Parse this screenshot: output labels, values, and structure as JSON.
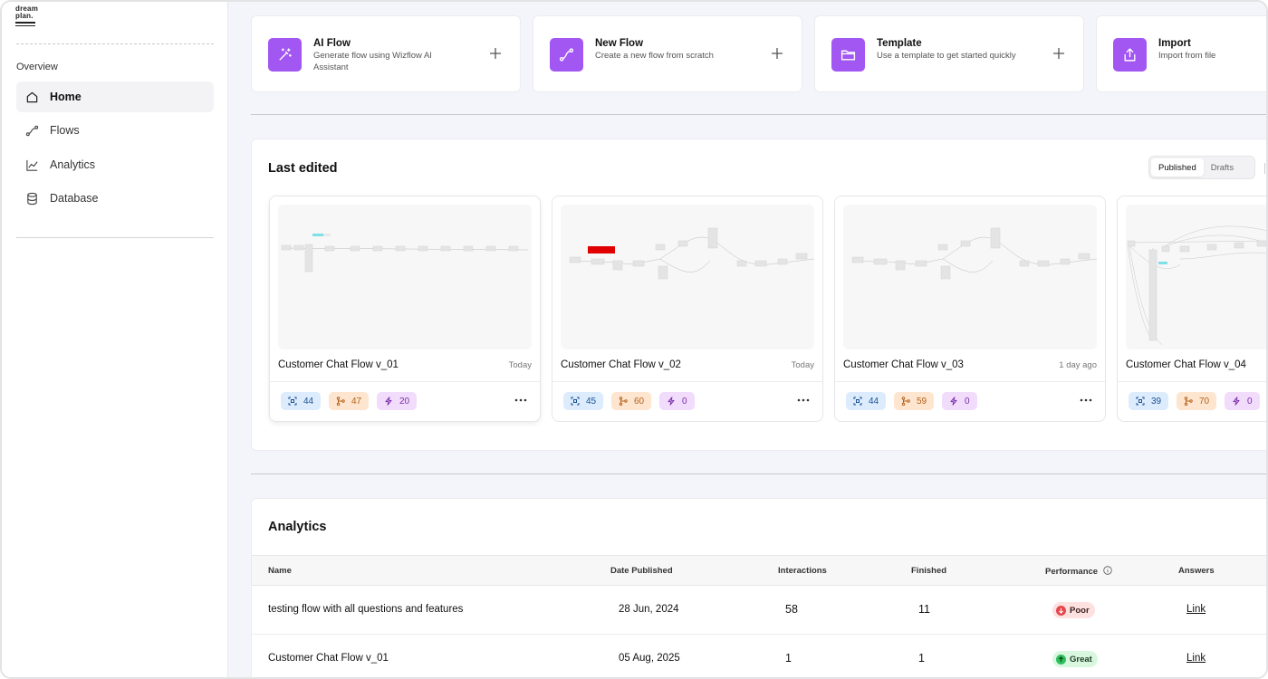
{
  "brand": {
    "logo_line1": "dream",
    "logo_line2": "plan."
  },
  "sidebar": {
    "section_label": "Overview",
    "items": [
      {
        "label": "Home",
        "icon": "home-icon",
        "active": true
      },
      {
        "label": "Flows",
        "icon": "flow-icon",
        "active": false
      },
      {
        "label": "Analytics",
        "icon": "chart-line-icon",
        "active": false
      },
      {
        "label": "Database",
        "icon": "database-icon",
        "active": false
      }
    ]
  },
  "actions": [
    {
      "title": "AI Flow",
      "subtitle": "Generate flow using Wizflow AI Assistant",
      "icon": "magic-wand-icon"
    },
    {
      "title": "New Flow",
      "subtitle": "Create a new flow from scratch",
      "icon": "flow-path-icon"
    },
    {
      "title": "Template",
      "subtitle": "Use a template to get started quickly",
      "icon": "folder-icon"
    },
    {
      "title": "Import",
      "subtitle": "Import from file",
      "icon": "upload-icon"
    }
  ],
  "last_edited": {
    "title": "Last edited",
    "tabs": [
      {
        "label": "Published",
        "active": true
      },
      {
        "label": "Drafts",
        "active": false
      }
    ],
    "flows": [
      {
        "name": "Customer Chat Flow v_01",
        "date": "Today",
        "nodes": "44",
        "branches": "47",
        "actions": "20"
      },
      {
        "name": "Customer Chat Flow v_02",
        "date": "Today",
        "nodes": "45",
        "branches": "60",
        "actions": "0"
      },
      {
        "name": "Customer Chat Flow v_03",
        "date": "1 day ago",
        "nodes": "44",
        "branches": "59",
        "actions": "0"
      },
      {
        "name": "Customer Chat Flow v_04",
        "date": "",
        "nodes": "39",
        "branches": "70",
        "actions": "0"
      }
    ]
  },
  "analytics": {
    "title": "Analytics",
    "columns": {
      "name": "Name",
      "date": "Date Published",
      "interactions": "Interactions",
      "finished": "Finished",
      "performance": "Performance",
      "answers": "Answers"
    },
    "rows": [
      {
        "name": "testing flow with all questions and features",
        "date": "28 Jun, 2024",
        "interactions": "58",
        "finished": "11",
        "performance": "Poor",
        "answers": "Link"
      },
      {
        "name": "Customer Chat Flow v_01",
        "date": "05 Aug, 2025",
        "interactions": "1",
        "finished": "1",
        "performance": "Great",
        "answers": "Link"
      }
    ]
  },
  "colors": {
    "accent": "#a256f2",
    "badge_blue": "#dcecfd",
    "badge_orange": "#fde5cf",
    "badge_purple": "#f1dcfb",
    "poor": "#e5484d",
    "great": "#2fbf5b"
  }
}
